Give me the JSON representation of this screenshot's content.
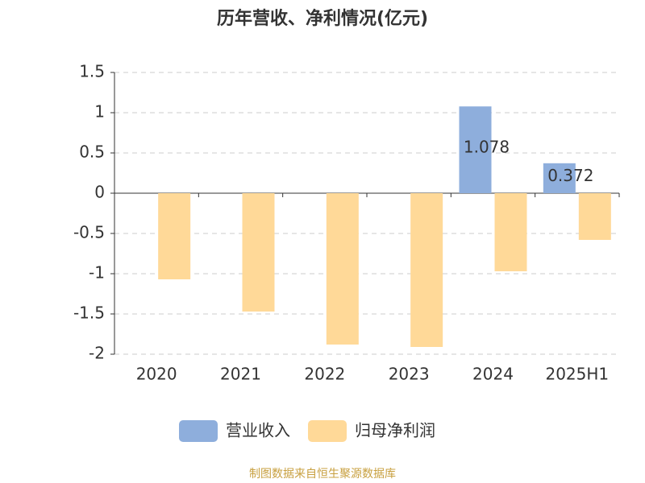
{
  "chart_data": {
    "type": "bar",
    "title": "历年营收、净利情况(亿元)",
    "categories": [
      "2020",
      "2021",
      "2022",
      "2023",
      "2024",
      "2025H1"
    ],
    "series": [
      {
        "name": "营业收入",
        "color": "#8eaedc",
        "values": [
          null,
          null,
          null,
          null,
          1.078,
          0.372
        ],
        "labels": true
      },
      {
        "name": "归母净利润",
        "color": "#ffd998",
        "values": [
          -1.07,
          -1.47,
          -1.88,
          -1.91,
          -0.97,
          -0.58
        ],
        "labels": false
      }
    ],
    "ylim": [
      -2,
      1.5
    ],
    "yticks": [
      1.5,
      1,
      0.5,
      0,
      -0.5,
      -1,
      -1.5,
      -2
    ],
    "grid": true,
    "source": "制图数据来自恒生聚源数据库"
  }
}
